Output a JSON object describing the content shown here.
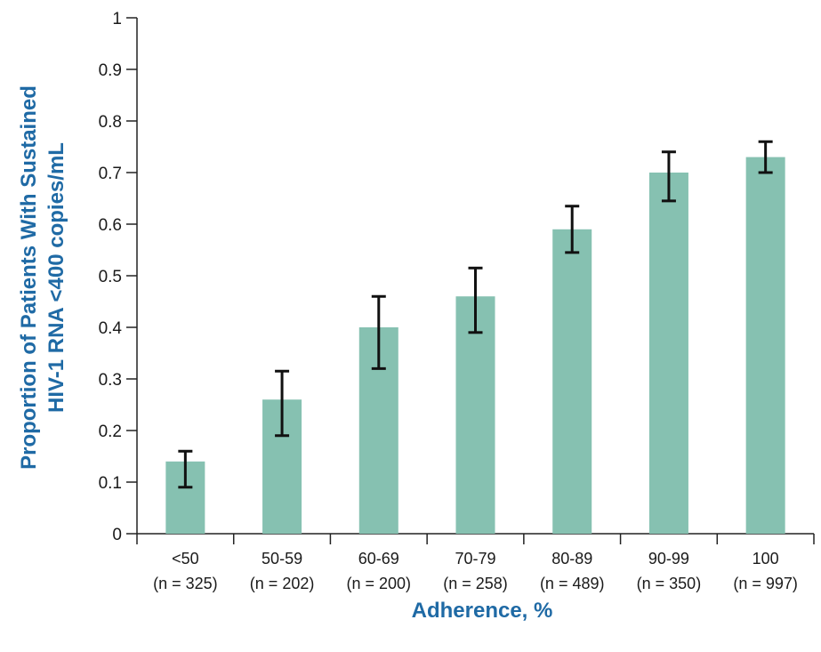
{
  "chart_data": {
    "type": "bar",
    "title": "",
    "xlabel": "Adherence, %",
    "ylabel_line1": "Proportion of Patients With Sustained",
    "ylabel_line2": "HIV-1 RNA <400 copies/mL",
    "ylim": [
      0,
      1
    ],
    "yticks": [
      "0",
      "0.1",
      "0.2",
      "0.3",
      "0.4",
      "0.5",
      "0.6",
      "0.7",
      "0.8",
      "0.9",
      "1"
    ],
    "categories": [
      "<50",
      "50-59",
      "60-69",
      "70-79",
      "80-89",
      "90-99",
      "100"
    ],
    "sample_sizes": [
      "(n = 325)",
      "(n = 202)",
      "(n = 200)",
      "(n = 258)",
      "(n = 489)",
      "(n = 350)",
      "(n = 997)"
    ],
    "values": [
      0.14,
      0.26,
      0.4,
      0.46,
      0.59,
      0.7,
      0.73
    ],
    "error_low": [
      0.09,
      0.19,
      0.32,
      0.39,
      0.545,
      0.645,
      0.7
    ],
    "error_high": [
      0.16,
      0.315,
      0.46,
      0.515,
      0.635,
      0.74,
      0.76
    ],
    "grid": false,
    "legend": "none",
    "colors": {
      "bar": "#86c1b1",
      "error_bar": "#111111",
      "axis": "#222222",
      "axis_title": "#1f6aa5"
    }
  }
}
